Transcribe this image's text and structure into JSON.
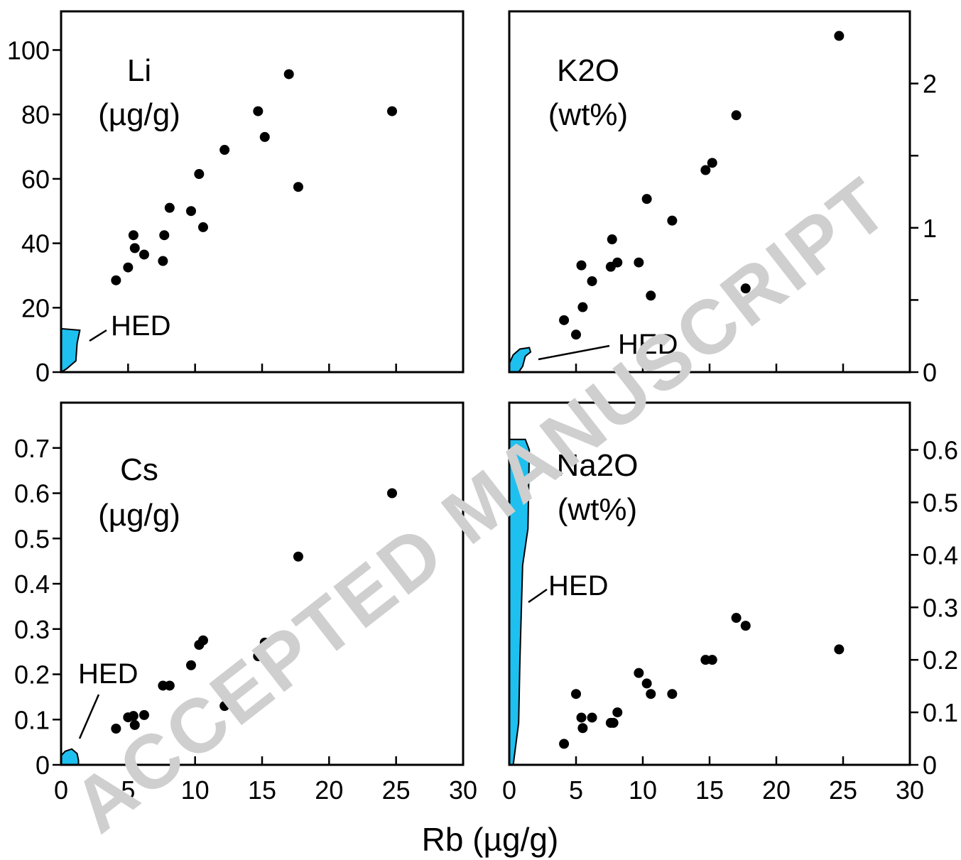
{
  "chart_data": [
    {
      "id": "li",
      "type": "scatter",
      "label_lines": [
        "Li",
        "(µg/g)"
      ],
      "xlim": [
        0,
        30
      ],
      "xticks": [
        0,
        5,
        10,
        15,
        20,
        25,
        30
      ],
      "ylim": [
        0,
        112
      ],
      "yticks": [
        0,
        20,
        40,
        60,
        80,
        100
      ],
      "yaxis_side": "left",
      "points": [
        [
          4.1,
          28.5
        ],
        [
          5.0,
          32.5
        ],
        [
          5.4,
          42.5
        ],
        [
          5.5,
          38.5
        ],
        [
          6.2,
          36.5
        ],
        [
          7.6,
          34.5
        ],
        [
          7.7,
          42.5
        ],
        [
          8.1,
          51
        ],
        [
          9.7,
          50
        ],
        [
          10.3,
          61.5
        ],
        [
          10.6,
          45
        ],
        [
          12.2,
          69
        ],
        [
          14.7,
          81
        ],
        [
          15.2,
          73
        ],
        [
          17.0,
          92.5
        ],
        [
          17.7,
          57.5
        ],
        [
          24.7,
          81
        ]
      ],
      "hed_label": "HED",
      "hed_region": [
        [
          0,
          0
        ],
        [
          0,
          13.5
        ],
        [
          1.4,
          13.0
        ],
        [
          1.2,
          9
        ],
        [
          1.1,
          3.5
        ],
        [
          0.4,
          1
        ],
        [
          0,
          0
        ]
      ]
    },
    {
      "id": "k2o",
      "type": "scatter",
      "label_lines": [
        "K2O",
        "(wt%)"
      ],
      "xlim": [
        0,
        30
      ],
      "xticks": [
        0,
        5,
        10,
        15,
        20,
        25,
        30
      ],
      "ylim": [
        0,
        2.5
      ],
      "yticks": [
        0,
        1,
        2
      ],
      "ytick_labels": [
        "0",
        "",
        "1",
        "",
        "2"
      ],
      "ytick_values": [
        0,
        0.5,
        1,
        1.5,
        2
      ],
      "yaxis_side": "right",
      "points": [
        [
          4.1,
          0.36
        ],
        [
          5.0,
          0.26
        ],
        [
          5.4,
          0.74
        ],
        [
          5.5,
          0.45
        ],
        [
          6.2,
          0.63
        ],
        [
          7.6,
          0.73
        ],
        [
          7.7,
          0.92
        ],
        [
          8.1,
          0.76
        ],
        [
          9.7,
          0.76
        ],
        [
          10.3,
          1.2
        ],
        [
          10.6,
          0.53
        ],
        [
          12.2,
          1.05
        ],
        [
          14.7,
          1.4
        ],
        [
          15.2,
          1.45
        ],
        [
          17.0,
          1.78
        ],
        [
          17.7,
          0.58
        ],
        [
          24.7,
          2.33
        ]
      ],
      "hed_label": "HED",
      "hed_region": [
        [
          0,
          0
        ],
        [
          0,
          0.06
        ],
        [
          0.3,
          0.12
        ],
        [
          0.8,
          0.16
        ],
        [
          1.5,
          0.17
        ],
        [
          1.6,
          0.14
        ],
        [
          1.2,
          0.11
        ],
        [
          1.0,
          0.04
        ],
        [
          0.7,
          0
        ],
        [
          0,
          0
        ]
      ]
    },
    {
      "id": "cs",
      "type": "scatter",
      "label_lines": [
        "Cs",
        "(µg/g)"
      ],
      "xlim": [
        0,
        30
      ],
      "xticks": [
        0,
        5,
        10,
        15,
        20,
        25,
        30
      ],
      "ylim": [
        0,
        0.8
      ],
      "yticks": [
        0,
        0.1,
        0.2,
        0.3,
        0.4,
        0.5,
        0.6,
        0.7
      ],
      "ytick_labels": [
        "0",
        "0.1",
        "0.2",
        "0.3",
        "0.4",
        "0.5",
        "0.6",
        "0.7"
      ],
      "yaxis_side": "left",
      "points": [
        [
          4.1,
          0.08
        ],
        [
          5.0,
          0.105
        ],
        [
          5.4,
          0.108
        ],
        [
          5.5,
          0.088
        ],
        [
          6.2,
          0.11
        ],
        [
          7.6,
          0.175
        ],
        [
          8.1,
          0.175
        ],
        [
          9.7,
          0.22
        ],
        [
          10.3,
          0.265
        ],
        [
          10.6,
          0.275
        ],
        [
          12.2,
          0.13
        ],
        [
          14.7,
          0.24
        ],
        [
          15.2,
          0.27
        ],
        [
          17.7,
          0.46
        ],
        [
          24.7,
          0.6
        ]
      ],
      "hed_label": "HED",
      "hed_region": [
        [
          0,
          0
        ],
        [
          0,
          0.02
        ],
        [
          0.3,
          0.03
        ],
        [
          0.8,
          0.035
        ],
        [
          1.2,
          0.025
        ],
        [
          1.3,
          0.01
        ],
        [
          1.3,
          0
        ],
        [
          0,
          0
        ]
      ]
    },
    {
      "id": "na2o",
      "type": "scatter",
      "label_lines": [
        "Na2O",
        "(wt%)"
      ],
      "xlim": [
        0,
        30
      ],
      "xticks": [
        0,
        5,
        10,
        15,
        20,
        25,
        30
      ],
      "ylim": [
        0,
        0.69
      ],
      "yticks": [
        0,
        0.1,
        0.2,
        0.3,
        0.4,
        0.5,
        0.6
      ],
      "ytick_labels": [
        "0",
        "0.1",
        "0.2",
        "0.3",
        "0.4",
        "0.5",
        "0.6"
      ],
      "yaxis_side": "right",
      "points": [
        [
          4.1,
          0.04
        ],
        [
          5.0,
          0.135
        ],
        [
          5.4,
          0.09
        ],
        [
          5.5,
          0.07
        ],
        [
          6.2,
          0.09
        ],
        [
          7.6,
          0.08
        ],
        [
          7.8,
          0.08
        ],
        [
          8.1,
          0.1
        ],
        [
          9.7,
          0.175
        ],
        [
          10.3,
          0.155
        ],
        [
          10.6,
          0.135
        ],
        [
          12.2,
          0.135
        ],
        [
          14.7,
          0.2
        ],
        [
          15.2,
          0.2
        ],
        [
          17.0,
          0.28
        ],
        [
          17.7,
          0.265
        ],
        [
          24.7,
          0.22
        ]
      ],
      "hed_label": "HED",
      "hed_region": [
        [
          0,
          0
        ],
        [
          0,
          0.62
        ],
        [
          1.2,
          0.62
        ],
        [
          1.5,
          0.6
        ],
        [
          1.4,
          0.45
        ],
        [
          1.0,
          0.38
        ],
        [
          0.8,
          0.2
        ],
        [
          0.7,
          0.08
        ],
        [
          0.3,
          0
        ],
        [
          0,
          0
        ]
      ]
    }
  ],
  "xlabel": "Rb (µg/g)",
  "watermark": "ACCEPTED MANUSCRIPT"
}
